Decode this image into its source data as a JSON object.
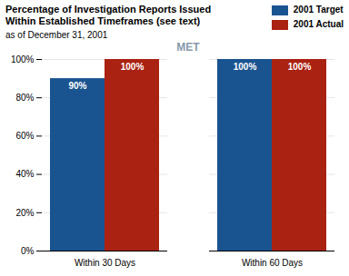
{
  "chart_data": {
    "type": "bar",
    "title": "Percentage of Investigation Reports Issued\nWithin Established Timeframes (see text)",
    "subtitle": "as of December 31, 2001",
    "annotations": [
      {
        "text": "MET"
      }
    ],
    "categories": [
      "Within 30 Days",
      "Within 60 Days"
    ],
    "series": [
      {
        "name": "2001 Target",
        "color": "#1a5490",
        "values": [
          90,
          100
        ],
        "value_labels": [
          "90%",
          "100%"
        ]
      },
      {
        "name": "2001 Actual",
        "color": "#aa2211",
        "values": [
          100,
          100
        ],
        "value_labels": [
          "100%",
          "100%"
        ]
      }
    ],
    "ylim": [
      0,
      100
    ],
    "yticks": [
      {
        "value": 0,
        "label": "0%"
      },
      {
        "value": 20,
        "label": "20%"
      },
      {
        "value": 40,
        "label": "40%"
      },
      {
        "value": 60,
        "label": "60%"
      },
      {
        "value": 80,
        "label": "80%"
      },
      {
        "value": 100,
        "label": "100%"
      }
    ],
    "grid": true,
    "legend": "upper right",
    "data_labels": true
  }
}
